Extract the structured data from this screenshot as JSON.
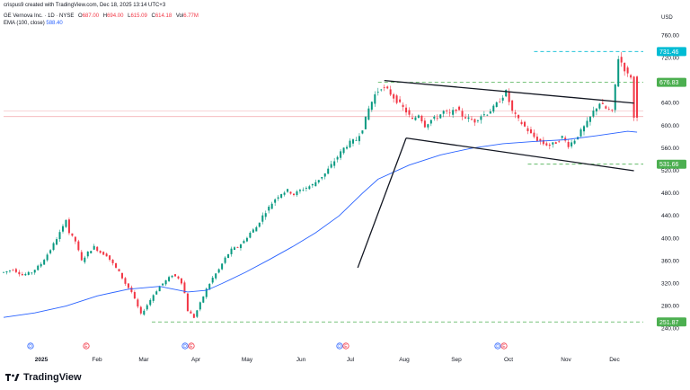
{
  "header": {
    "credit": "crispus9 created with TradingView.com, Dec 18, 2025 13:14 UTC+3",
    "symbol": "GE Vernova Inc. · 1D · NYSE",
    "o_label": "O",
    "o_value": "687.00",
    "h_label": "H",
    "h_value": "694.00",
    "l_label": "L",
    "l_value": "615.09",
    "c_label": "C",
    "c_value": "614.18",
    "vol_label": "Vol",
    "vol_value": "6.77M",
    "ema_label": "EMA (100, close)",
    "ema_value": "588.40"
  },
  "currency": "USD",
  "logo_text": "TradingView",
  "colors": {
    "up": "#089981",
    "down": "#f23645",
    "ema": "#2962ff",
    "dashed_cyan": "#00bcd4",
    "dashed_green": "#4caf50",
    "trendline": "#131722"
  },
  "chart_data": {
    "type": "candlestick",
    "ylim": [
      230,
      775
    ],
    "yticks": [
      "760.00",
      "720.00",
      "680.00",
      "640.00",
      "600.00",
      "560.00",
      "520.00",
      "480.00",
      "440.00",
      "400.00",
      "360.00",
      "320.00",
      "280.00",
      "240.00"
    ],
    "xticks": [
      "2025",
      "Feb",
      "Mar",
      "Apr",
      "May",
      "Jun",
      "Jul",
      "Aug",
      "Sep",
      "Oct",
      "Nov",
      "Dec"
    ],
    "price_labels": [
      {
        "text": "731.46",
        "value": 731.46,
        "color": "#00bcd4"
      },
      {
        "text": "676.83",
        "value": 676.83,
        "color": "#4caf50"
      },
      {
        "text": "531.66",
        "value": 531.66,
        "color": "#4caf50"
      },
      {
        "text": "251.87",
        "value": 251.87,
        "color": "#4caf50"
      }
    ],
    "events": [
      {
        "letter": "D",
        "month": "2025"
      },
      {
        "letter": "E",
        "month": "Feb"
      },
      {
        "letter": "D",
        "month": "Apr"
      },
      {
        "letter": "E",
        "month": "Apr"
      },
      {
        "letter": "D",
        "month": "Jul"
      },
      {
        "letter": "E",
        "month": "Jul"
      },
      {
        "letter": "D",
        "month": "Oct"
      },
      {
        "letter": "E",
        "month": "Oct"
      }
    ],
    "close_path": [
      [
        0,
        340
      ],
      [
        6,
        345
      ],
      [
        12,
        335
      ],
      [
        18,
        340
      ],
      [
        24,
        355
      ],
      [
        30,
        380
      ],
      [
        34,
        400
      ],
      [
        38,
        420
      ],
      [
        40,
        435
      ],
      [
        42,
        410
      ],
      [
        46,
        395
      ],
      [
        50,
        360
      ],
      [
        54,
        375
      ],
      [
        58,
        385
      ],
      [
        62,
        375
      ],
      [
        66,
        370
      ],
      [
        70,
        355
      ],
      [
        74,
        340
      ],
      [
        78,
        320
      ],
      [
        82,
        305
      ],
      [
        85,
        285
      ],
      [
        88,
        265
      ],
      [
        92,
        282
      ],
      [
        96,
        300
      ],
      [
        100,
        315
      ],
      [
        104,
        325
      ],
      [
        108,
        335
      ],
      [
        112,
        330
      ],
      [
        115,
        318
      ],
      [
        118,
        272
      ],
      [
        122,
        260
      ],
      [
        126,
        285
      ],
      [
        130,
        310
      ],
      [
        134,
        330
      ],
      [
        138,
        345
      ],
      [
        142,
        365
      ],
      [
        146,
        380
      ],
      [
        150,
        385
      ],
      [
        154,
        395
      ],
      [
        158,
        410
      ],
      [
        162,
        420
      ],
      [
        166,
        440
      ],
      [
        170,
        455
      ],
      [
        174,
        470
      ],
      [
        178,
        480
      ],
      [
        182,
        485
      ],
      [
        186,
        478
      ],
      [
        190,
        485
      ],
      [
        194,
        490
      ],
      [
        198,
        495
      ],
      [
        202,
        505
      ],
      [
        206,
        515
      ],
      [
        210,
        530
      ],
      [
        214,
        545
      ],
      [
        218,
        560
      ],
      [
        222,
        570
      ],
      [
        226,
        575
      ],
      [
        230,
        595
      ],
      [
        234,
        630
      ],
      [
        238,
        655
      ],
      [
        242,
        668
      ],
      [
        246,
        663
      ],
      [
        250,
        650
      ],
      [
        254,
        638
      ],
      [
        258,
        625
      ],
      [
        262,
        610
      ],
      [
        266,
        620
      ],
      [
        270,
        600
      ],
      [
        274,
        610
      ],
      [
        278,
        615
      ],
      [
        282,
        625
      ],
      [
        286,
        620
      ],
      [
        290,
        630
      ],
      [
        294,
        618
      ],
      [
        298,
        612
      ],
      [
        302,
        608
      ],
      [
        306,
        618
      ],
      [
        310,
        622
      ],
      [
        314,
        632
      ],
      [
        318,
        645
      ],
      [
        322,
        660
      ],
      [
        326,
        625
      ],
      [
        330,
        610
      ],
      [
        334,
        598
      ],
      [
        338,
        585
      ],
      [
        342,
        575
      ],
      [
        346,
        568
      ],
      [
        350,
        565
      ],
      [
        354,
        570
      ],
      [
        358,
        580
      ],
      [
        362,
        565
      ],
      [
        366,
        575
      ],
      [
        370,
        590
      ],
      [
        374,
        605
      ],
      [
        378,
        625
      ],
      [
        382,
        640
      ],
      [
        386,
        630
      ],
      [
        390,
        625
      ],
      [
        394,
        720
      ],
      [
        396,
        712
      ],
      [
        398,
        700
      ],
      [
        400,
        690
      ],
      [
        404,
        685
      ],
      [
        406,
        614.18
      ]
    ],
    "ema_path": [
      [
        0,
        260
      ],
      [
        20,
        268
      ],
      [
        40,
        280
      ],
      [
        60,
        298
      ],
      [
        80,
        310
      ],
      [
        100,
        315
      ],
      [
        118,
        305
      ],
      [
        130,
        308
      ],
      [
        140,
        320
      ],
      [
        155,
        340
      ],
      [
        170,
        362
      ],
      [
        185,
        385
      ],
      [
        200,
        410
      ],
      [
        215,
        440
      ],
      [
        230,
        480
      ],
      [
        240,
        505
      ],
      [
        260,
        530
      ],
      [
        280,
        548
      ],
      [
        300,
        560
      ],
      [
        320,
        568
      ],
      [
        340,
        572
      ],
      [
        360,
        575
      ],
      [
        380,
        582
      ],
      [
        400,
        590
      ],
      [
        406,
        588.4
      ]
    ],
    "trendlines": [
      {
        "name": "upper-channel",
        "from": [
          244,
          680
        ],
        "to": [
          404,
          640
        ]
      },
      {
        "name": "lower-channel",
        "from": [
          258,
          578
        ],
        "to": [
          404,
          520
        ]
      },
      {
        "name": "rally-line",
        "from": [
          227,
          348
        ],
        "to": [
          258,
          578
        ]
      }
    ],
    "horizontal_lines": [
      {
        "value": 731.46,
        "from": 340,
        "to": 410,
        "style": "dashed",
        "color": "#00bcd4"
      },
      {
        "value": 676.83,
        "from": 240,
        "to": 410,
        "style": "dashed",
        "color": "#4caf50"
      },
      {
        "value": 531.66,
        "from": 336,
        "to": 410,
        "style": "dashed",
        "color": "#4caf50"
      },
      {
        "value": 251.87,
        "from": 95,
        "to": 410,
        "style": "dashed",
        "color": "#4caf50"
      },
      {
        "value": 626,
        "from": 0,
        "to": 410,
        "style": "solid",
        "color": "#f6c6ca"
      },
      {
        "value": 616,
        "from": 0,
        "to": 410,
        "style": "solid",
        "color": "#f2a3a9"
      }
    ]
  }
}
